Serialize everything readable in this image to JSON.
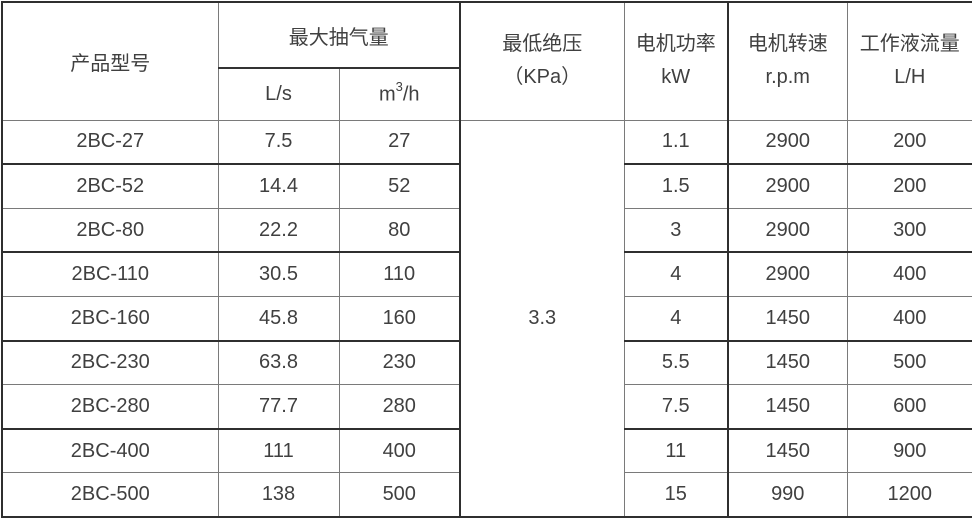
{
  "page": {
    "background": "#ffffff"
  },
  "colors": {
    "text": "#404040",
    "border_thick": "#2f2f2f",
    "border_thin": "#7a7a7a"
  },
  "table": {
    "headers": {
      "product_model": "产品型号",
      "max_pumping": "最大抽气量",
      "unit_ls": "L/s",
      "unit_m3h_base": "m",
      "unit_m3h_sup": "3",
      "unit_m3h_rest": "/h",
      "min_pressure": [
        "最低绝压",
        "（KPa）"
      ],
      "motor_power": [
        "电机功率",
        "kW"
      ],
      "motor_speed": [
        "电机转速",
        "r.p.m"
      ],
      "fluid_flow": [
        "工作液流量",
        "L/H"
      ]
    }
  },
  "chart_data": {
    "type": "table",
    "title": "",
    "columns": [
      "产品型号",
      "最大抽气量 L/s",
      "最大抽气量 m³/h",
      "最低绝压（KPa）",
      "电机功率 kW",
      "电机转速 r.p.m",
      "工作液流量 L/H"
    ],
    "rows": [
      [
        "2BC-27",
        "7.5",
        "27",
        "1.1",
        "2900",
        "200"
      ],
      [
        "2BC-52",
        "14.4",
        "52",
        "1.5",
        "2900",
        "200"
      ],
      [
        "2BC-80",
        "22.2",
        "80",
        "3",
        "2900",
        "300"
      ],
      [
        "2BC-110",
        "30.5",
        "110",
        "4",
        "2900",
        "400"
      ],
      [
        "2BC-160",
        "45.8",
        "160",
        "4",
        "1450",
        "400"
      ],
      [
        "2BC-230",
        "63.8",
        "230",
        "5.5",
        "1450",
        "500"
      ],
      [
        "2BC-280",
        "77.7",
        "280",
        "7.5",
        "1450",
        "600"
      ],
      [
        "2BC-400",
        "111",
        "400",
        "11",
        "1450",
        "900"
      ],
      [
        "2BC-500",
        "138",
        "500",
        "15",
        "990",
        "1200"
      ]
    ],
    "merged_cell": {
      "column_index": 3,
      "value": "3.3",
      "rowspan": 9
    }
  }
}
